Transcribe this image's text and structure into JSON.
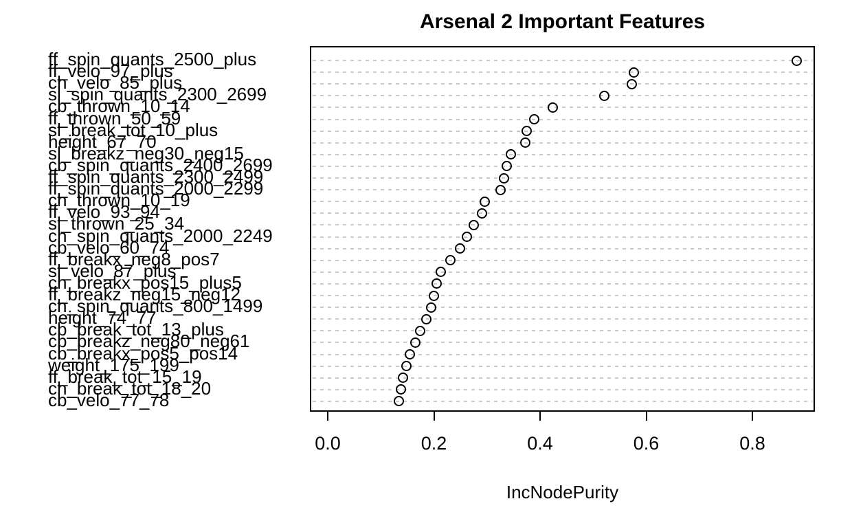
{
  "chart_data": {
    "type": "scatter",
    "title": "Arsenal 2 Important Features",
    "xlabel": "IncNodePurity",
    "ylabel": "",
    "x_ticks": [
      0.0,
      0.2,
      0.4,
      0.6,
      0.8
    ],
    "x_tick_labels": [
      "0.0",
      "0.2",
      "0.4",
      "0.6",
      "0.8"
    ],
    "xlim": [
      -0.035,
      0.92
    ],
    "grid": "horizontal-dashed-per-row",
    "legend": "none",
    "marker": "open-circle",
    "categories": [
      "ff_spin_quants_2500_plus",
      "ff_velo_97_plus",
      "ch_velo_85_plus",
      "sl_spin_quants_2300_2699",
      "cb_thrown_10_14",
      "ff_thrown_50_59",
      "sl_break_tot_10_plus",
      "height_67_70",
      "sl_breakz_neg30_neg15",
      "cb_spin_quants_2400_2699",
      "ff_spin_quants_2300_2499",
      "ff_spin_quants_2000_2299",
      "ch_thrown_10_19",
      "ff_velo_93_94",
      "sl_thrown_25_34",
      "ch_spin_quants_2000_2249",
      "cb_velo_60_74",
      "ff_breakx_neg8_pos7",
      "sl_velo_87_plus",
      "ch_breakx_pos15_plus5",
      "ff_breakz_neg15_neg12",
      "ch_spin_quants_800_1499",
      "height_74_77",
      "cb_break_tot_13_plus",
      "cb_breakz_neg80_neg61",
      "cb_breakx_pos5_pos14",
      "weight_175_199",
      "ff_break_tot_15_19",
      "ch_break_tot_18_20",
      "cb_velo_77_78"
    ],
    "values": [
      0.881,
      0.574,
      0.57,
      0.518,
      0.421,
      0.386,
      0.372,
      0.369,
      0.342,
      0.334,
      0.329,
      0.323,
      0.293,
      0.288,
      0.273,
      0.259,
      0.246,
      0.228,
      0.21,
      0.203,
      0.197,
      0.192,
      0.183,
      0.172,
      0.163,
      0.152,
      0.146,
      0.139,
      0.135,
      0.132
    ],
    "colors": {
      "marker_stroke": "#000000",
      "gridline": "#c9c9c9",
      "text": "#000000",
      "background": "#ffffff"
    }
  }
}
